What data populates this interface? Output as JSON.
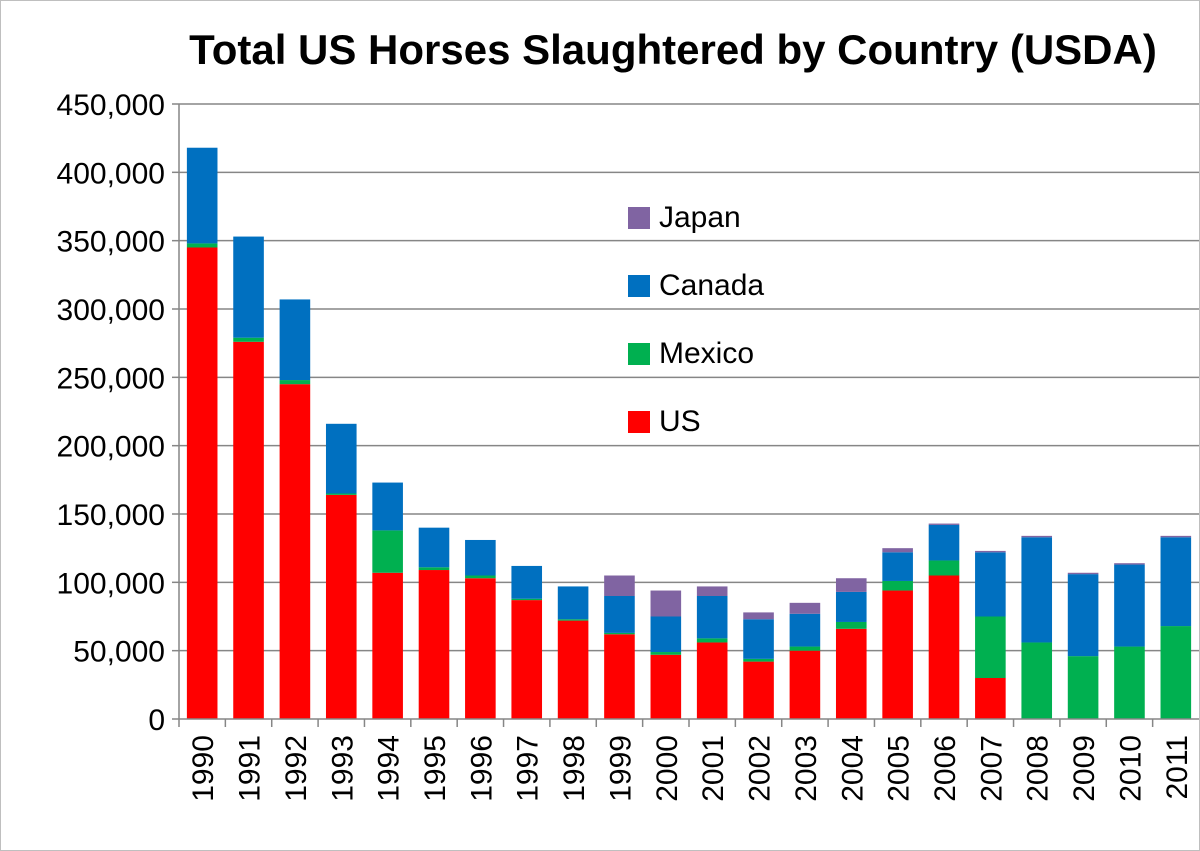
{
  "chart_data": {
    "type": "bar",
    "stacked": true,
    "title": "Total US Horses Slaughtered by Country (USDA)",
    "xlabel": "",
    "ylabel": "",
    "ylim": [
      0,
      450000
    ],
    "y_ticks": [
      {
        "value": 0,
        "label": "0"
      },
      {
        "value": 50000,
        "label": "50,000"
      },
      {
        "value": 100000,
        "label": "100,000"
      },
      {
        "value": 150000,
        "label": "150,000"
      },
      {
        "value": 200000,
        "label": "200,000"
      },
      {
        "value": 250000,
        "label": "250,000"
      },
      {
        "value": 300000,
        "label": "300,000"
      },
      {
        "value": 350000,
        "label": "350,000"
      },
      {
        "value": 400000,
        "label": "400,000"
      },
      {
        "value": 450000,
        "label": "450,000"
      }
    ],
    "grid": true,
    "legend_position": "upper-center",
    "categories": [
      "1990",
      "1991",
      "1992",
      "1993",
      "1994",
      "1995",
      "1996",
      "1997",
      "1998",
      "1999",
      "2000",
      "2001",
      "2002",
      "2003",
      "2004",
      "2005",
      "2006",
      "2007",
      "2008",
      "2009",
      "2010",
      "2011"
    ],
    "series": [
      {
        "name": "US",
        "color": "#ff0000",
        "values": [
          345000,
          276000,
          245000,
          164000,
          107000,
          109000,
          103000,
          87000,
          72000,
          62000,
          47000,
          56000,
          42000,
          50000,
          66000,
          94000,
          105000,
          30000,
          0,
          0,
          0,
          0
        ]
      },
      {
        "name": "Mexico",
        "color": "#00b050",
        "values": [
          3000,
          3000,
          3000,
          1000,
          31000,
          2000,
          2000,
          1000,
          1000,
          1000,
          2000,
          3000,
          2000,
          3000,
          5000,
          7000,
          11000,
          45000,
          56000,
          46000,
          53000,
          68000
        ]
      },
      {
        "name": "Canada",
        "color": "#0070c0",
        "values": [
          70000,
          74000,
          59000,
          51000,
          35000,
          29000,
          26000,
          24000,
          24000,
          27000,
          26000,
          31000,
          29000,
          24000,
          22000,
          21000,
          26000,
          47000,
          77000,
          60000,
          60000,
          65000
        ]
      },
      {
        "name": "Japan",
        "color": "#8064a2",
        "values": [
          0,
          0,
          0,
          0,
          0,
          0,
          0,
          0,
          0,
          15000,
          19000,
          7000,
          5000,
          8000,
          10000,
          3000,
          1000,
          1000,
          1000,
          1000,
          1000,
          1000
        ]
      }
    ],
    "legend_order": [
      "Japan",
      "Canada",
      "Mexico",
      "US"
    ]
  }
}
